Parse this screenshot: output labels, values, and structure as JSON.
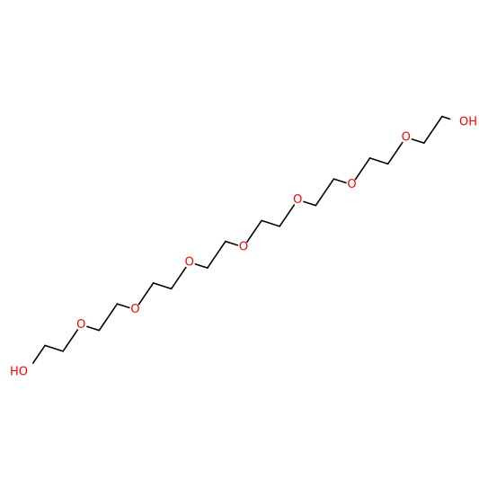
{
  "molecule": {
    "atoms": [
      {
        "symbol": "HO",
        "color": "#ff0000",
        "side": "left"
      },
      {
        "symbol": "O",
        "color": "#ff0000"
      },
      {
        "symbol": "O",
        "color": "#ff0000"
      },
      {
        "symbol": "O",
        "color": "#ff0000"
      },
      {
        "symbol": "O",
        "color": "#ff0000"
      },
      {
        "symbol": "O",
        "color": "#ff0000"
      },
      {
        "symbol": "O",
        "color": "#ff0000"
      },
      {
        "symbol": "O",
        "color": "#ff0000"
      },
      {
        "symbol": "OH",
        "color": "#ff0000",
        "side": "right"
      }
    ],
    "bond_color": "#000000"
  }
}
